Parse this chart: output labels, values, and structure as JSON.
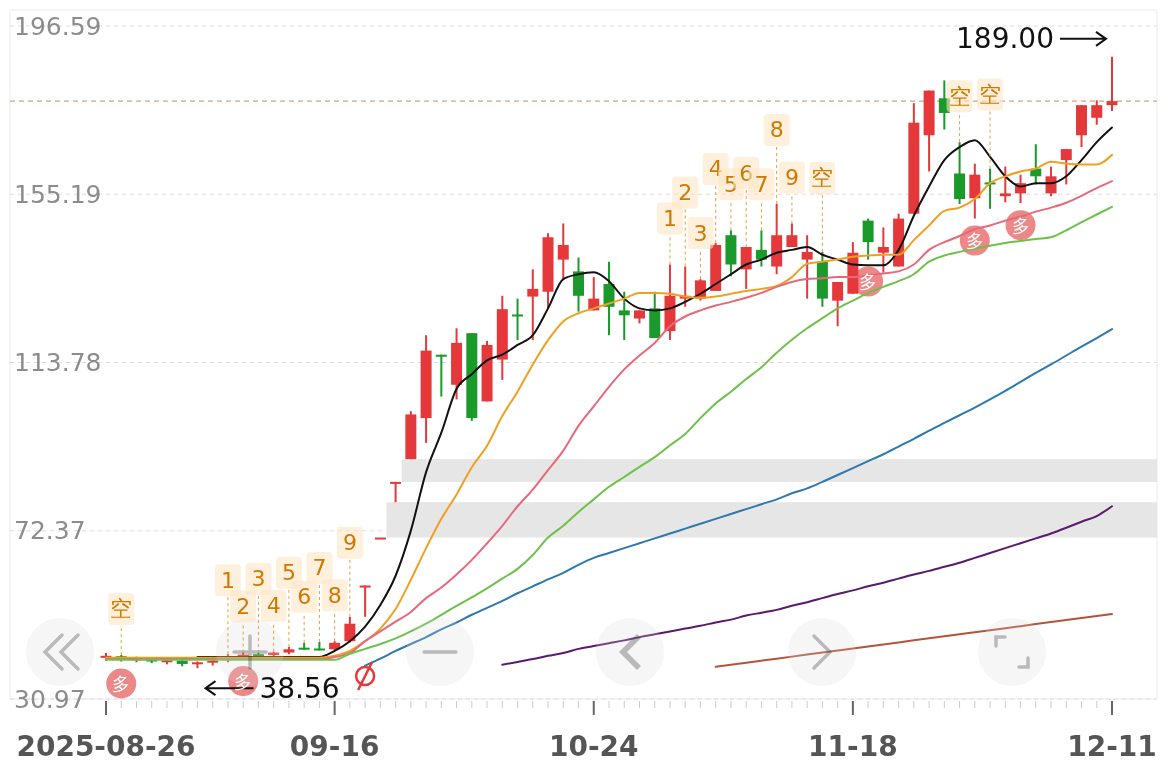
{
  "chart_data": {
    "type": "candlestick",
    "categories": [
      "2025-08-26",
      null,
      null,
      null,
      null,
      null,
      null,
      null,
      null,
      null,
      null,
      null,
      null,
      null,
      null,
      "09-16",
      null,
      null,
      null,
      null,
      null,
      null,
      null,
      null,
      null,
      null,
      null,
      null,
      null,
      null,
      null,
      null,
      "10-24",
      null,
      null,
      null,
      null,
      null,
      null,
      null,
      null,
      null,
      null,
      null,
      null,
      null,
      null,
      null,
      null,
      "11-18",
      null,
      null,
      null,
      null,
      null,
      null,
      null,
      null,
      null,
      null,
      null,
      null,
      null,
      null,
      null,
      null,
      "12-11"
    ],
    "ohlc": [
      [
        41.1,
        42.3,
        40.4,
        41.6
      ],
      [
        41.5,
        41.8,
        40.2,
        40.8
      ],
      [
        40.8,
        41.4,
        40.0,
        41.0
      ],
      [
        41.0,
        41.3,
        39.8,
        40.2
      ],
      [
        40.2,
        40.8,
        39.5,
        40.5
      ],
      [
        40.4,
        40.6,
        39.0,
        39.6
      ],
      [
        39.6,
        40.2,
        38.56,
        40.0
      ],
      [
        40.0,
        40.6,
        39.2,
        40.4
      ],
      [
        40.5,
        42.0,
        40.0,
        41.4
      ],
      [
        41.4,
        42.4,
        40.8,
        41.9
      ],
      [
        42.0,
        42.3,
        41.5,
        41.8
      ],
      [
        41.8,
        42.6,
        41.4,
        42.4
      ],
      [
        42.4,
        43.8,
        42.0,
        43.2
      ],
      [
        43.6,
        44.8,
        43.0,
        43.2
      ],
      [
        43.4,
        45.0,
        42.9,
        43.0
      ],
      [
        43.2,
        45.2,
        42.8,
        44.8
      ],
      [
        45.2,
        51.2,
        44.9,
        49.5
      ],
      [
        58.4,
        58.9,
        51.2,
        58.9
      ],
      [
        70.7,
        70.7,
        70.7,
        70.7
      ],
      [
        84.0,
        84.4,
        79.4,
        84.4
      ],
      [
        90.0,
        101.8,
        90.0,
        101.0
      ],
      [
        100.1,
        120.5,
        94.0,
        116.7
      ],
      [
        115.7,
        115.7,
        105.4,
        115.2
      ],
      [
        108.3,
        122.2,
        104.7,
        118.6
      ],
      [
        121.0,
        121.0,
        99.4,
        100.1
      ],
      [
        104.2,
        119.1,
        104.2,
        118.1
      ],
      [
        114.5,
        130.2,
        109.5,
        126.9
      ],
      [
        125.6,
        129.5,
        119.3,
        125.4
      ],
      [
        130.0,
        136.7,
        119.3,
        131.9
      ],
      [
        131.2,
        145.6,
        127.1,
        144.6
      ],
      [
        139.1,
        148.0,
        134.3,
        142.7
      ],
      [
        136.2,
        139.6,
        126.3,
        130.2
      ],
      [
        126.6,
        134.8,
        126.6,
        129.5
      ],
      [
        133.1,
        138.6,
        120.5,
        127.5
      ],
      [
        126.6,
        131.2,
        119.3,
        125.4
      ],
      [
        124.6,
        126.6,
        123.4,
        126.6
      ],
      [
        127.1,
        131.2,
        119.8,
        119.8
      ],
      [
        121.5,
        137.9,
        119.3,
        130.2
      ],
      [
        129.5,
        137.4,
        127.5,
        130.2
      ],
      [
        129.5,
        134.3,
        129.0,
        134.0
      ],
      [
        131.4,
        143.2,
        131.4,
        142.7
      ],
      [
        145.1,
        146.3,
        135.0,
        137.9
      ],
      [
        136.7,
        142.2,
        131.9,
        142.2
      ],
      [
        141.5,
        146.3,
        137.4,
        139.1
      ],
      [
        137.4,
        152.8,
        135.5,
        145.1
      ],
      [
        142.2,
        148.0,
        142.2,
        145.1
      ],
      [
        139.1,
        145.1,
        129.5,
        141.0
      ],
      [
        138.6,
        141.0,
        127.5,
        129.5
      ],
      [
        129.0,
        133.6,
        122.7,
        133.6
      ],
      [
        130.7,
        143.4,
        130.7,
        140.8
      ],
      [
        148.7,
        149.2,
        139.1,
        143.4
      ],
      [
        140.8,
        147.0,
        135.9,
        142.2
      ],
      [
        137.4,
        150.4,
        137.4,
        149.2
      ],
      [
        150.4,
        177.6,
        150.4,
        172.8
      ],
      [
        169.7,
        180.7,
        160.8,
        180.7
      ],
      [
        178.8,
        183.2,
        171.1,
        175.2
      ],
      [
        160.3,
        168.0,
        152.8,
        154.0
      ],
      [
        154.2,
        162.7,
        149.2,
        160.0
      ],
      [
        158.1,
        161.5,
        151.6,
        157.6
      ],
      [
        154.7,
        162.0,
        153.2,
        155.4
      ],
      [
        155.4,
        160.0,
        153.0,
        157.9
      ],
      [
        161.5,
        167.5,
        157.6,
        159.6
      ],
      [
        155.4,
        162.0,
        154.7,
        159.6
      ],
      [
        163.6,
        166.3,
        157.6,
        166.3
      ],
      [
        169.7,
        177.1,
        166.8,
        177.1
      ],
      [
        174.0,
        178.3,
        172.3,
        177.1
      ],
      [
        177.1,
        189.0,
        175.7,
        178.1
      ]
    ],
    "colors": [
      "#e5383b",
      "#1a9a2a",
      "#e5383b",
      "#1a9a2a",
      "#e5383b",
      "#1a9a2a",
      "#e5383b",
      "#e5383b",
      "#e5383b",
      "#e5383b",
      "#1a9a2a",
      "#e5383b",
      "#e5383b",
      "#1a9a2a",
      "#1a9a2a",
      "#e5383b",
      "#e5383b",
      "#e5383b",
      "#e5383b",
      "#e5383b",
      "#e5383b",
      "#e5383b",
      "#1a9a2a",
      "#e5383b",
      "#1a9a2a",
      "#e5383b",
      "#e5383b",
      "#1a9a2a",
      "#e5383b",
      "#e5383b",
      "#e5383b",
      "#1a9a2a",
      "#e5383b",
      "#1a9a2a",
      "#1a9a2a",
      "#e5383b",
      "#1a9a2a",
      "#e5383b",
      "#e5383b",
      "#e5383b",
      "#e5383b",
      "#1a9a2a",
      "#e5383b",
      "#1a9a2a",
      "#e5383b",
      "#e5383b",
      "#e5383b",
      "#1a9a2a",
      "#e5383b",
      "#e5383b",
      "#1a9a2a",
      "#e5383b",
      "#e5383b",
      "#e5383b",
      "#e5383b",
      "#1a9a2a",
      "#1a9a2a",
      "#e5383b",
      "#1a9a2a",
      "#e5383b",
      "#e5383b",
      "#1a9a2a",
      "#e5383b",
      "#e5383b",
      "#e5383b",
      "#e5383b",
      "#e5383b"
    ],
    "series": [
      {
        "type": "line",
        "color": "#111111",
        "values": [
          null,
          null,
          null,
          null,
          null,
          null,
          41.3,
          41.3,
          41.3,
          41.3,
          41.3,
          41.3,
          41.3,
          41.3,
          41.3,
          42.8,
          45.2,
          48.8,
          54.1,
          61.3,
          72.4,
          86.8,
          96.5,
          107.3,
          110.9,
          114.3,
          115.7,
          118.1,
          120.5,
          127.1,
          134.3,
          135.5,
          136.0,
          133.8,
          129.5,
          127.1,
          126.6,
          127.1,
          128.7,
          130.7,
          133.1,
          135.5,
          137.9,
          139.1,
          140.8,
          141.5,
          142.2,
          140.3,
          139.1,
          137.9,
          137.7,
          137.7,
          141.5,
          149.9,
          157.1,
          163.6,
          166.8,
          168.5,
          164.4,
          159.6,
          157.1,
          157.9,
          157.9,
          159.6,
          163.6,
          168.0,
          171.6
        ]
      },
      {
        "type": "line",
        "color": "#f0a020",
        "values": [
          41.1,
          41.1,
          41.1,
          41.1,
          41.1,
          41.1,
          41.1,
          41.1,
          41.1,
          41.1,
          41.1,
          41.1,
          41.1,
          41.1,
          41.1,
          41.6,
          42.8,
          45.2,
          48.3,
          53.1,
          60.3,
          68.1,
          75.3,
          81.3,
          88.0,
          93.3,
          100.6,
          106.6,
          113.3,
          119.3,
          123.9,
          125.9,
          127.1,
          128.3,
          129.5,
          130.9,
          130.9,
          130.7,
          130.0,
          129.7,
          130.0,
          130.7,
          131.4,
          131.9,
          132.6,
          134.8,
          138.1,
          138.6,
          139.1,
          139.8,
          140.1,
          140.3,
          140.3,
          143.9,
          147.5,
          151.1,
          151.9,
          154.0,
          157.9,
          159.6,
          160.8,
          161.5,
          163.2,
          162.7,
          162.5,
          162.5,
          164.9
        ]
      },
      {
        "type": "line",
        "color": "#e8687a",
        "values": [
          40.8,
          40.8,
          40.8,
          40.8,
          40.8,
          40.8,
          40.8,
          40.8,
          40.8,
          40.8,
          40.8,
          40.8,
          40.8,
          40.8,
          40.8,
          41.3,
          42.3,
          45.2,
          47.6,
          50.0,
          52.4,
          55.8,
          58.4,
          61.6,
          65.2,
          69.3,
          73.6,
          78.4,
          82.5,
          87.3,
          92.1,
          98.2,
          103.0,
          107.8,
          112.1,
          115.5,
          118.6,
          122.7,
          125.1,
          126.6,
          127.8,
          128.7,
          129.7,
          130.9,
          132.4,
          133.6,
          134.3,
          134.5,
          134.8,
          134.8,
          135.2,
          135.7,
          136.2,
          137.9,
          141.5,
          143.4,
          144.9,
          146.6,
          147.5,
          148.7,
          149.7,
          150.9,
          151.9,
          153.1,
          154.8,
          156.7,
          158.4
        ]
      },
      {
        "type": "line",
        "color": "#6cc24a",
        "values": [
          40.6,
          40.6,
          40.6,
          40.6,
          40.6,
          40.6,
          40.6,
          40.6,
          40.6,
          40.6,
          40.6,
          40.6,
          40.6,
          40.6,
          40.6,
          40.6,
          42.1,
          43.3,
          44.5,
          45.9,
          47.6,
          49.5,
          51.7,
          53.9,
          56.0,
          58.2,
          60.6,
          63.0,
          66.4,
          70.7,
          73.6,
          77.0,
          80.1,
          83.2,
          85.6,
          88.1,
          90.5,
          93.4,
          96.2,
          100.1,
          103.7,
          106.6,
          109.7,
          112.6,
          116.2,
          119.4,
          122.2,
          124.7,
          127.1,
          129.0,
          130.9,
          132.4,
          133.8,
          135.5,
          138.6,
          140.1,
          141.0,
          141.8,
          142.5,
          143.2,
          143.7,
          144.2,
          144.6,
          146.3,
          148.3,
          150.2,
          152.1
        ]
      },
      {
        "type": "line",
        "color": "#2e78b0",
        "values": [
          null,
          null,
          null,
          null,
          null,
          null,
          null,
          null,
          null,
          null,
          null,
          null,
          null,
          null,
          null,
          null,
          null,
          39.2,
          40.9,
          42.8,
          44.5,
          46.2,
          48.1,
          49.8,
          51.7,
          53.4,
          55.1,
          57.0,
          58.7,
          60.4,
          62.0,
          64.0,
          65.7,
          66.9,
          68.1,
          69.3,
          70.5,
          71.7,
          72.9,
          74.1,
          75.3,
          76.5,
          77.7,
          78.9,
          80.1,
          81.6,
          82.8,
          84.4,
          86.1,
          87.8,
          89.5,
          91.2,
          93.1,
          95.0,
          97.0,
          98.9,
          100.8,
          102.7,
          104.7,
          106.8,
          109.0,
          111.2,
          113.3,
          115.5,
          117.7,
          119.8,
          122.0
        ]
      },
      {
        "type": "line",
        "color": "#5a1a6e",
        "values": [
          null,
          null,
          null,
          null,
          null,
          null,
          null,
          null,
          null,
          null,
          null,
          null,
          null,
          null,
          null,
          null,
          null,
          null,
          null,
          null,
          null,
          null,
          null,
          null,
          null,
          null,
          39.4,
          40.1,
          40.8,
          41.6,
          42.3,
          43.3,
          44.0,
          44.7,
          45.4,
          46.2,
          46.9,
          47.6,
          48.3,
          49.0,
          49.8,
          50.5,
          51.5,
          52.2,
          52.9,
          53.9,
          54.8,
          55.8,
          56.8,
          57.7,
          58.7,
          59.6,
          60.6,
          61.6,
          62.5,
          63.5,
          64.5,
          65.7,
          66.9,
          68.1,
          69.3,
          70.5,
          71.7,
          73.1,
          74.6,
          76.0,
          78.4
        ]
      },
      {
        "type": "line",
        "color": "#b5523b",
        "values": [
          null,
          null,
          null,
          null,
          null,
          null,
          null,
          null,
          null,
          null,
          null,
          null,
          null,
          null,
          null,
          null,
          null,
          null,
          null,
          null,
          null,
          null,
          null,
          null,
          null,
          null,
          null,
          null,
          null,
          null,
          null,
          null,
          null,
          null,
          null,
          null,
          null,
          null,
          null,
          null,
          38.9,
          39.4,
          39.9,
          40.4,
          40.9,
          41.4,
          41.9,
          42.4,
          42.9,
          43.4,
          43.9,
          44.4,
          44.9,
          45.4,
          45.9,
          46.4,
          46.9,
          47.4,
          47.9,
          48.4,
          48.9,
          49.4,
          49.9,
          50.4,
          50.9,
          51.4,
          51.9
        ]
      }
    ],
    "ylim": [
      30.97,
      196.59
    ],
    "yticks": [
      30.97,
      72.37,
      113.78,
      155.19,
      196.59
    ],
    "grid": "y",
    "ref_lines": [
      {
        "axis": "y",
        "value": 178.1,
        "color": "#c8a882",
        "line_style": "dashed"
      }
    ],
    "bands": [
      {
        "axis": "y",
        "from": 84.4,
        "to": 90.0,
        "color": "#e6e6e6"
      },
      {
        "axis": "y",
        "from": 70.7,
        "to": 79.4,
        "color": "#e6e6e6"
      }
    ],
    "annotations": [
      {
        "text": "空",
        "y": 41.8
      },
      {
        "text": "多",
        "y": 40.2
      },
      "38.56",
      {
        "text": "1",
        "y": 42.0
      },
      {
        "text": "2",
        "y": 42.4
      },
      {
        "text": "多",
        "y": 40.8
      },
      {
        "text": "3",
        "y": 42.3
      },
      {
        "text": "4",
        "y": 42.6
      },
      {
        "text": "5",
        "y": 43.8
      },
      {
        "text": "6",
        "y": 44.8
      },
      {
        "text": "7",
        "y": 45.0
      },
      {
        "text": "8",
        "y": 45.2
      },
      {
        "text": "9",
        "y": 51.2
      },
      {
        "text": "1",
        "y": 137.9
      },
      {
        "text": "2",
        "y": 137.4
      },
      {
        "text": "3",
        "y": 134.3
      },
      {
        "text": "4",
        "y": 143.2
      },
      {
        "text": "5",
        "y": 146.3
      },
      {
        "text": "6",
        "y": 142.2
      },
      {
        "text": "7",
        "y": 146.3
      },
      {
        "text": "8",
        "y": 152.8
      },
      {
        "text": "9",
        "y": 148.0
      },
      {
        "text": "空",
        "y": 141.0
      },
      {
        "text": "多",
        "y": 139.1
      },
      {
        "text": "空",
        "y": 168.0
      },
      {
        "text": "多",
        "y": 149.2
      },
      {
        "text": "空",
        "y": 161.5
      },
      {
        "text": "多",
        "y": 153.0
      },
      "189.00"
    ]
  }
}
